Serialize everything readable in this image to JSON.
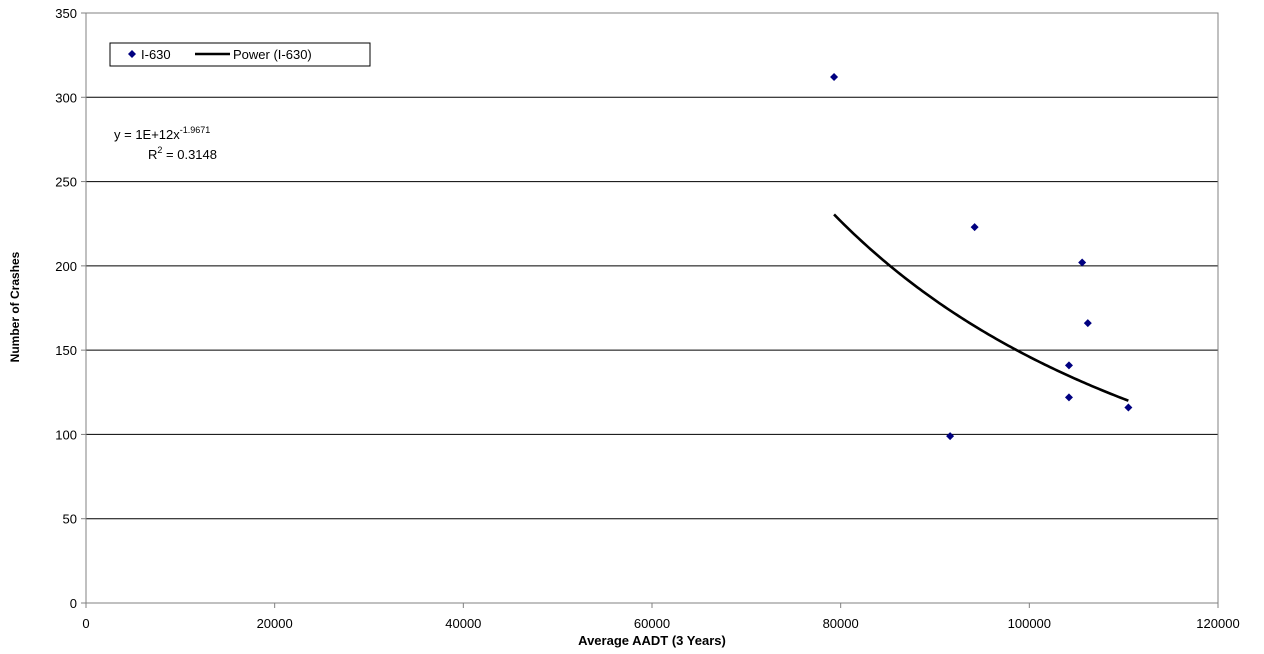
{
  "chart_data": {
    "type": "scatter",
    "xlabel": "Average AADT (3 Years)",
    "ylabel": "Number of Crashes",
    "xlim": [
      0,
      120000
    ],
    "ylim": [
      0,
      350
    ],
    "x_ticks": [
      0,
      20000,
      40000,
      60000,
      80000,
      100000,
      120000
    ],
    "y_ticks": [
      0,
      50,
      100,
      150,
      200,
      250,
      300,
      350
    ],
    "grid": "horizontal",
    "legend_position": "top-left",
    "series": [
      {
        "name": "I-630",
        "marker": "diamond",
        "color": "#000080",
        "points": [
          {
            "x": 79300,
            "y": 312
          },
          {
            "x": 94200,
            "y": 223
          },
          {
            "x": 91600,
            "y": 99
          },
          {
            "x": 104200,
            "y": 141
          },
          {
            "x": 104200,
            "y": 122
          },
          {
            "x": 105600,
            "y": 202
          },
          {
            "x": 106200,
            "y": 166
          },
          {
            "x": 110500,
            "y": 116
          }
        ]
      }
    ],
    "trendline": {
      "name": "Power (I-630)",
      "color": "#000000",
      "coefficient": 1000000000000.0,
      "exponent": -1.9671,
      "x_range": [
        79300,
        110500
      ]
    },
    "annotation": {
      "eq_prefix": "y = 1E+12x",
      "eq_exponent": "-1.9671",
      "r2_prefix": "R",
      "r2_exponent": "2",
      "r2_value": " = 0.3148"
    }
  }
}
